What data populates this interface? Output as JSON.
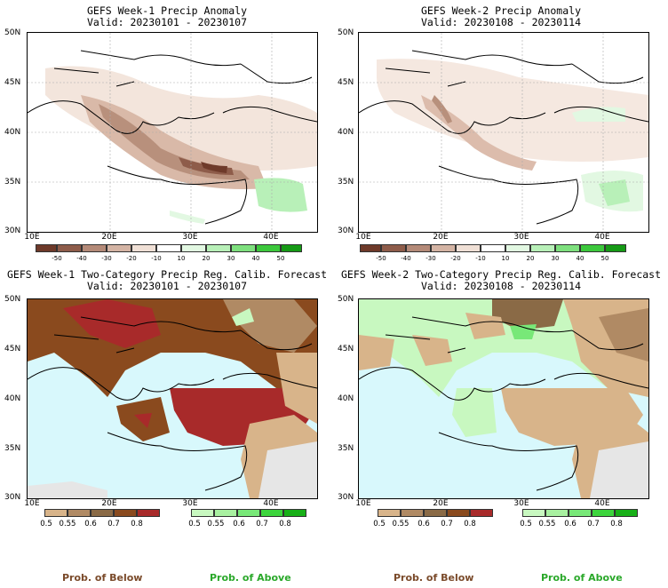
{
  "panels": [
    {
      "title": "GEFS Week-1 Precip Anomaly",
      "valid": "Valid: 20230101 - 20230107"
    },
    {
      "title": "GEFS Week-2 Precip Anomaly",
      "valid": "Valid: 20230108 - 20230114"
    },
    {
      "title": "GEFS Week-1 Two-Category Precip Reg. Calib. Forecast",
      "valid": "Valid: 20230101 - 20230107"
    },
    {
      "title": "GEFS Week-2 Two-Category Precip Reg. Calib. Forecast",
      "valid": "Valid: 20230108 - 20230114"
    }
  ],
  "lat_labels": [
    "50N",
    "45N",
    "40N",
    "35N",
    "30N"
  ],
  "lon_labels": [
    "10E",
    "20E",
    "30E",
    "40E"
  ],
  "anomaly_colorbar": {
    "ticks": [
      "-50",
      "-40",
      "-30",
      "-20",
      "-10",
      "10",
      "20",
      "30",
      "40",
      "50"
    ],
    "colors": [
      "#6e3a2a",
      "#8e5c4a",
      "#b48a78",
      "#d4b4a4",
      "#f0e0d6",
      "#ffffff",
      "#e2f8e2",
      "#b8f0b8",
      "#7ee07e",
      "#3cc83c",
      "#169a16"
    ]
  },
  "prob_colorbar": {
    "below_ticks": [
      "0.5",
      "0.55",
      "0.6",
      "0.7",
      "0.8"
    ],
    "above_ticks": [
      "0.5",
      "0.55",
      "0.6",
      "0.7",
      "0.8"
    ],
    "below_colors": [
      "#d8b48a",
      "#b08a64",
      "#8a6a46",
      "#8a4a1e",
      "#a82a2a"
    ],
    "above_colors": [
      "#c8f8c0",
      "#a8f0a0",
      "#78e878",
      "#3cd43c",
      "#18b018"
    ]
  },
  "legend": {
    "below": "Prob. of Below",
    "above": "Prob. of Above"
  }
}
